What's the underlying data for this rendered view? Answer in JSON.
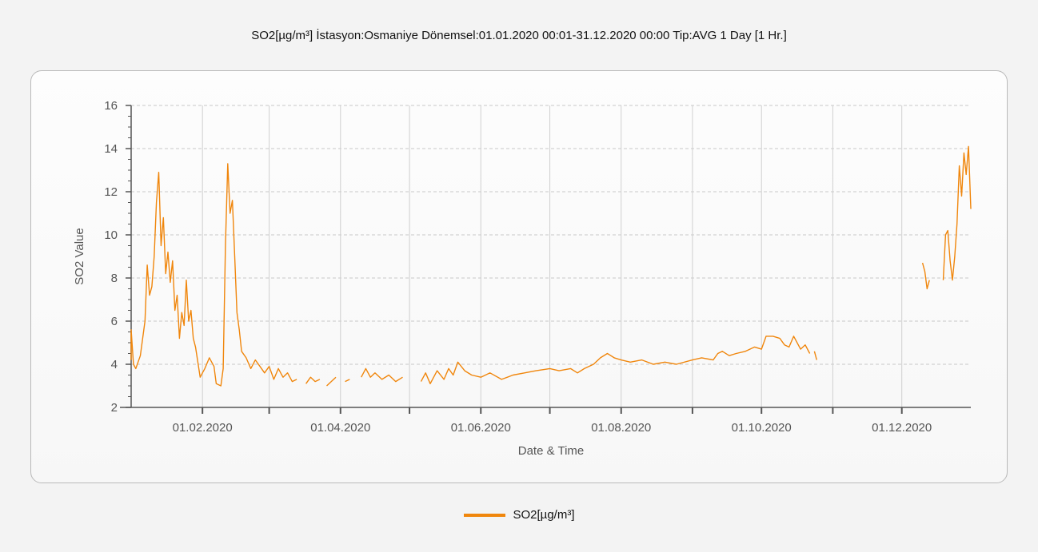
{
  "chart_data": {
    "type": "line",
    "title": "SO2[µg/m³] İstasyon:Osmaniye  Dönemsel:01.01.2020 00:01-31.12.2020 00:00  Tip:AVG 1 Day [1 Hr.]",
    "xlabel": "Date & Time",
    "ylabel": "SO2 Value",
    "ylim": [
      2,
      16
    ],
    "yticks": [
      2,
      4,
      6,
      8,
      10,
      12,
      14,
      16
    ],
    "xlim": [
      "2020-01-01",
      "2020-12-31"
    ],
    "xticks": [
      {
        "date": "2020-02-01",
        "label": "01.02.2020"
      },
      {
        "date": "2020-04-01",
        "label": "01.04.2020"
      },
      {
        "date": "2020-06-01",
        "label": "01.06.2020"
      },
      {
        "date": "2020-08-01",
        "label": "01.08.2020"
      },
      {
        "date": "2020-10-01",
        "label": "01.10.2020"
      },
      {
        "date": "2020-12-01",
        "label": "01.12.2020"
      }
    ],
    "grid": true,
    "legend_position": "bottom-center",
    "series": [
      {
        "name": "SO2[µg/m³]",
        "color": "#f0860c",
        "segments": [
          [
            [
              "2020-01-01",
              4.2
            ],
            [
              "2020-01-01",
              5.6
            ],
            [
              "2020-01-02",
              4.0
            ],
            [
              "2020-01-03",
              3.8
            ],
            [
              "2020-01-05",
              4.4
            ],
            [
              "2020-01-07",
              6.0
            ],
            [
              "2020-01-08",
              8.6
            ],
            [
              "2020-01-09",
              7.2
            ],
            [
              "2020-01-10",
              7.6
            ],
            [
              "2020-01-11",
              9.0
            ],
            [
              "2020-01-12",
              11.5
            ],
            [
              "2020-01-13",
              12.9
            ],
            [
              "2020-01-14",
              9.5
            ],
            [
              "2020-01-15",
              10.8
            ],
            [
              "2020-01-16",
              8.2
            ],
            [
              "2020-01-17",
              9.2
            ],
            [
              "2020-01-18",
              7.8
            ],
            [
              "2020-01-19",
              8.8
            ],
            [
              "2020-01-20",
              6.5
            ],
            [
              "2020-01-21",
              7.2
            ],
            [
              "2020-01-22",
              5.2
            ],
            [
              "2020-01-23",
              6.4
            ],
            [
              "2020-01-24",
              5.8
            ],
            [
              "2020-01-25",
              7.9
            ],
            [
              "2020-01-26",
              6.0
            ],
            [
              "2020-01-27",
              6.5
            ],
            [
              "2020-01-28",
              5.2
            ],
            [
              "2020-01-29",
              4.8
            ],
            [
              "2020-01-31",
              3.4
            ],
            [
              "2020-02-02",
              3.8
            ],
            [
              "2020-02-04",
              4.3
            ],
            [
              "2020-02-06",
              3.9
            ],
            [
              "2020-02-07",
              3.1
            ],
            [
              "2020-02-09",
              3.0
            ],
            [
              "2020-02-10",
              3.8
            ],
            [
              "2020-02-11",
              9.5
            ],
            [
              "2020-02-12",
              13.3
            ],
            [
              "2020-02-13",
              11.0
            ],
            [
              "2020-02-14",
              11.6
            ],
            [
              "2020-02-15",
              9.0
            ],
            [
              "2020-02-16",
              6.4
            ],
            [
              "2020-02-17",
              5.6
            ],
            [
              "2020-02-18",
              4.6
            ],
            [
              "2020-02-20",
              4.3
            ],
            [
              "2020-02-22",
              3.8
            ],
            [
              "2020-02-24",
              4.2
            ],
            [
              "2020-02-26",
              3.9
            ],
            [
              "2020-02-28",
              3.6
            ],
            [
              "2020-03-01",
              3.9
            ],
            [
              "2020-03-03",
              3.3
            ],
            [
              "2020-03-05",
              3.8
            ],
            [
              "2020-03-07",
              3.4
            ],
            [
              "2020-03-09",
              3.6
            ],
            [
              "2020-03-11",
              3.2
            ],
            [
              "2020-03-13",
              3.3
            ]
          ],
          [
            [
              "2020-03-17",
              3.1
            ],
            [
              "2020-03-19",
              3.4
            ],
            [
              "2020-03-21",
              3.2
            ],
            [
              "2020-03-23",
              3.3
            ]
          ],
          [
            [
              "2020-03-26",
              3.0
            ],
            [
              "2020-03-30",
              3.4
            ]
          ],
          [
            [
              "2020-04-03",
              3.2
            ],
            [
              "2020-04-05",
              3.3
            ]
          ],
          [
            [
              "2020-04-10",
              3.4
            ],
            [
              "2020-04-12",
              3.8
            ],
            [
              "2020-04-14",
              3.4
            ],
            [
              "2020-04-16",
              3.6
            ],
            [
              "2020-04-19",
              3.3
            ],
            [
              "2020-04-22",
              3.5
            ],
            [
              "2020-04-25",
              3.2
            ],
            [
              "2020-04-28",
              3.4
            ]
          ],
          [
            [
              "2020-05-06",
              3.2
            ],
            [
              "2020-05-08",
              3.6
            ],
            [
              "2020-05-10",
              3.1
            ],
            [
              "2020-05-13",
              3.7
            ],
            [
              "2020-05-16",
              3.3
            ],
            [
              "2020-05-18",
              3.8
            ],
            [
              "2020-05-20",
              3.5
            ],
            [
              "2020-05-22",
              4.1
            ],
            [
              "2020-05-25",
              3.7
            ],
            [
              "2020-05-28",
              3.5
            ],
            [
              "2020-06-01",
              3.4
            ],
            [
              "2020-06-05",
              3.6
            ],
            [
              "2020-06-10",
              3.3
            ],
            [
              "2020-06-15",
              3.5
            ],
            [
              "2020-06-20",
              3.6
            ],
            [
              "2020-06-25",
              3.7
            ],
            [
              "2020-07-01",
              3.8
            ],
            [
              "2020-07-05",
              3.7
            ],
            [
              "2020-07-10",
              3.8
            ],
            [
              "2020-07-13",
              3.6
            ],
            [
              "2020-07-16",
              3.8
            ],
            [
              "2020-07-20",
              4.0
            ],
            [
              "2020-07-23",
              4.3
            ],
            [
              "2020-07-26",
              4.5
            ],
            [
              "2020-07-29",
              4.3
            ],
            [
              "2020-08-01",
              4.2
            ],
            [
              "2020-08-05",
              4.1
            ],
            [
              "2020-08-10",
              4.2
            ],
            [
              "2020-08-15",
              4.0
            ],
            [
              "2020-08-20",
              4.1
            ],
            [
              "2020-08-25",
              4.0
            ],
            [
              "2020-09-01",
              4.2
            ],
            [
              "2020-09-05",
              4.3
            ],
            [
              "2020-09-10",
              4.2
            ],
            [
              "2020-09-12",
              4.5
            ],
            [
              "2020-09-14",
              4.6
            ],
            [
              "2020-09-17",
              4.4
            ],
            [
              "2020-09-20",
              4.5
            ],
            [
              "2020-09-24",
              4.6
            ],
            [
              "2020-09-28",
              4.8
            ],
            [
              "2020-10-01",
              4.7
            ],
            [
              "2020-10-03",
              5.3
            ],
            [
              "2020-10-06",
              5.3
            ],
            [
              "2020-10-09",
              5.2
            ],
            [
              "2020-10-11",
              4.9
            ],
            [
              "2020-10-13",
              4.8
            ],
            [
              "2020-10-15",
              5.3
            ],
            [
              "2020-10-18",
              4.7
            ],
            [
              "2020-10-20",
              4.9
            ],
            [
              "2020-10-22",
              4.5
            ]
          ],
          [
            [
              "2020-10-24",
              4.6
            ],
            [
              "2020-10-25",
              4.2
            ]
          ],
          [
            [
              "2020-12-10",
              8.7
            ],
            [
              "2020-12-11",
              8.3
            ],
            [
              "2020-12-12",
              7.5
            ],
            [
              "2020-12-13",
              7.9
            ]
          ],
          [
            [
              "2020-12-19",
              7.9
            ],
            [
              "2020-12-20",
              10.0
            ],
            [
              "2020-12-21",
              10.2
            ],
            [
              "2020-12-22",
              8.8
            ],
            [
              "2020-12-23",
              7.9
            ],
            [
              "2020-12-24",
              9.0
            ],
            [
              "2020-12-25",
              10.5
            ],
            [
              "2020-12-26",
              13.2
            ],
            [
              "2020-12-27",
              11.8
            ],
            [
              "2020-12-28",
              13.8
            ],
            [
              "2020-12-29",
              12.8
            ],
            [
              "2020-12-30",
              14.1
            ],
            [
              "2020-12-31",
              11.2
            ]
          ]
        ]
      }
    ]
  }
}
